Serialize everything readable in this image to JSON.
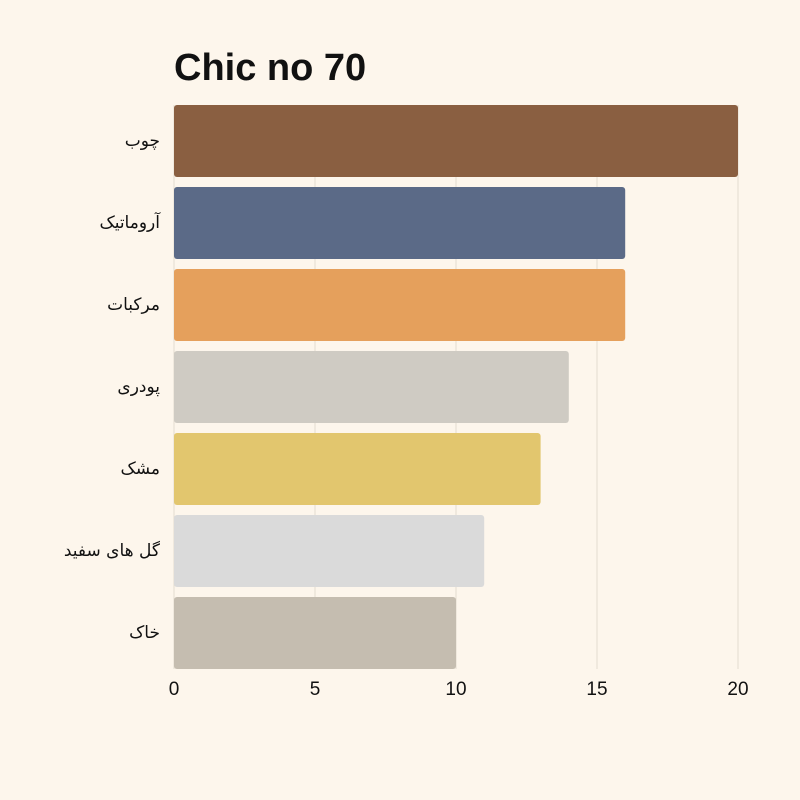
{
  "chart_data": {
    "type": "barh",
    "title": "Chic no 70",
    "categories": [
      "چوب",
      "آروماتیک",
      "مرکبات",
      "پودری",
      "مشک",
      "گل های سفید",
      "خاک"
    ],
    "values": [
      20,
      16,
      16,
      14,
      13,
      11,
      10
    ],
    "colors": [
      "#8a5f41",
      "#5b6a87",
      "#e5a05c",
      "#cfcbc3",
      "#e2c66e",
      "#dadada",
      "#c5bdb0"
    ],
    "xlim": [
      0,
      20
    ],
    "xticks": [
      0,
      5,
      10,
      15,
      20
    ],
    "grid": true
  }
}
